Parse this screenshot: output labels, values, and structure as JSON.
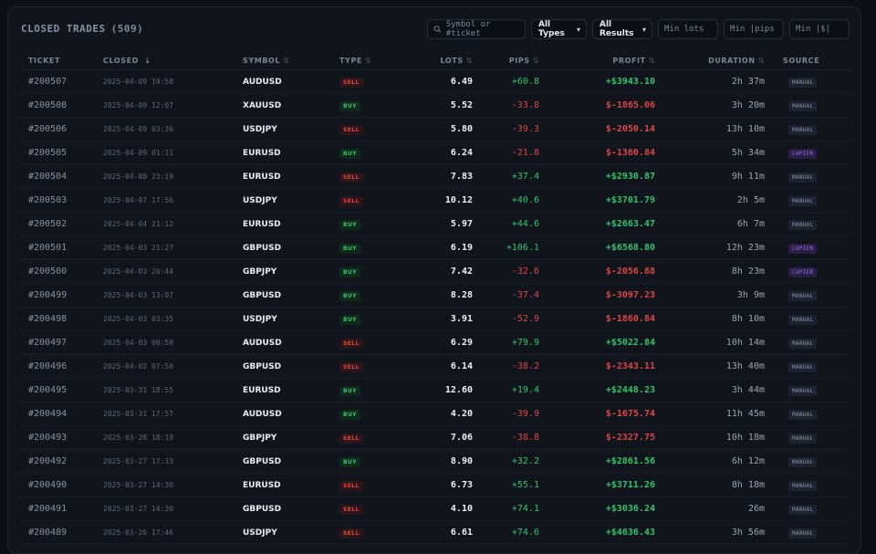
{
  "header": {
    "title": "CLOSED TRADES",
    "count": "(509)"
  },
  "filters": {
    "search_placeholder": "Symbol or #ticket",
    "types_value": "All Types",
    "results_value": "All Results",
    "min_lots_placeholder": "Min lots",
    "min_pips_placeholder": "Min |pips",
    "min_usd_placeholder": "Min |$|"
  },
  "columns": {
    "ticket": "TICKET",
    "closed": "CLOSED",
    "closed_sort": "↓",
    "symbol": "SYMBOL",
    "type": "TYPE",
    "lots": "LOTS",
    "pips": "PIPS",
    "profit": "PROFIT",
    "duration": "DURATION",
    "source": "SOURCE",
    "sort_glyph": "⇅"
  },
  "colors": {
    "positive": "#32c46a",
    "negative": "#e0463f",
    "copier": "#9a74e4"
  },
  "rows": [
    {
      "ticket": "#200507",
      "closed": "2025-04-09 19:58",
      "symbol": "AUDUSD",
      "type": "SELL",
      "lots": "6.49",
      "pips": "+60.8",
      "profit": "+$3943.10",
      "duration": "2h 37m",
      "source": "MANUAL"
    },
    {
      "ticket": "#200508",
      "closed": "2025-04-09 12:07",
      "symbol": "XAUUSD",
      "type": "BUY",
      "lots": "5.52",
      "pips": "-33.8",
      "profit": "$-1865.06",
      "duration": "3h 20m",
      "source": "MANUAL"
    },
    {
      "ticket": "#200506",
      "closed": "2025-04-09 03:36",
      "symbol": "USDJPY",
      "type": "SELL",
      "lots": "5.80",
      "pips": "-39.3",
      "profit": "$-2050.14",
      "duration": "13h 10m",
      "source": "MANUAL"
    },
    {
      "ticket": "#200505",
      "closed": "2025-04-09 01:11",
      "symbol": "EURUSD",
      "type": "BUY",
      "lots": "6.24",
      "pips": "-21.8",
      "profit": "$-1360.84",
      "duration": "5h 34m",
      "source": "COPIER"
    },
    {
      "ticket": "#200504",
      "closed": "2025-04-08 23:19",
      "symbol": "EURUSD",
      "type": "SELL",
      "lots": "7.83",
      "pips": "+37.4",
      "profit": "+$2930.87",
      "duration": "9h 11m",
      "source": "MANUAL"
    },
    {
      "ticket": "#200503",
      "closed": "2025-04-07 17:56",
      "symbol": "USDJPY",
      "type": "SELL",
      "lots": "10.12",
      "pips": "+40.6",
      "profit": "+$3701.79",
      "duration": "2h 5m",
      "source": "MANUAL"
    },
    {
      "ticket": "#200502",
      "closed": "2025-04-04 21:12",
      "symbol": "EURUSD",
      "type": "BUY",
      "lots": "5.97",
      "pips": "+44.6",
      "profit": "+$2663.47",
      "duration": "6h 7m",
      "source": "MANUAL"
    },
    {
      "ticket": "#200501",
      "closed": "2025-04-03 21:27",
      "symbol": "GBPUSD",
      "type": "BUY",
      "lots": "6.19",
      "pips": "+106.1",
      "profit": "+$6568.80",
      "duration": "12h 23m",
      "source": "COPIER"
    },
    {
      "ticket": "#200500",
      "closed": "2025-04-03 20:44",
      "symbol": "GBPJPY",
      "type": "BUY",
      "lots": "7.42",
      "pips": "-32.6",
      "profit": "$-2056.88",
      "duration": "8h 23m",
      "source": "COPIER"
    },
    {
      "ticket": "#200499",
      "closed": "2025-04-03 13:07",
      "symbol": "GBPUSD",
      "type": "BUY",
      "lots": "8.28",
      "pips": "-37.4",
      "profit": "$-3097.23",
      "duration": "3h 9m",
      "source": "MANUAL"
    },
    {
      "ticket": "#200498",
      "closed": "2025-04-03 03:35",
      "symbol": "USDJPY",
      "type": "BUY",
      "lots": "3.91",
      "pips": "-52.9",
      "profit": "$-1860.84",
      "duration": "8h 10m",
      "source": "MANUAL"
    },
    {
      "ticket": "#200497",
      "closed": "2025-04-03 00:58",
      "symbol": "AUDUSD",
      "type": "SELL",
      "lots": "6.29",
      "pips": "+79.9",
      "profit": "+$5022.84",
      "duration": "10h 14m",
      "source": "MANUAL"
    },
    {
      "ticket": "#200496",
      "closed": "2025-04-02 07:50",
      "symbol": "GBPUSD",
      "type": "SELL",
      "lots": "6.14",
      "pips": "-38.2",
      "profit": "$-2343.11",
      "duration": "13h 40m",
      "source": "MANUAL"
    },
    {
      "ticket": "#200495",
      "closed": "2025-03-31 18:55",
      "symbol": "EURUSD",
      "type": "BUY",
      "lots": "12.60",
      "pips": "+19.4",
      "profit": "+$2448.23",
      "duration": "3h 44m",
      "source": "MANUAL"
    },
    {
      "ticket": "#200494",
      "closed": "2025-03-31 17:57",
      "symbol": "AUDUSD",
      "type": "BUY",
      "lots": "4.20",
      "pips": "-39.9",
      "profit": "$-1675.74",
      "duration": "11h 45m",
      "source": "MANUAL"
    },
    {
      "ticket": "#200493",
      "closed": "2025-03-28 18:19",
      "symbol": "GBPJPY",
      "type": "SELL",
      "lots": "7.06",
      "pips": "-38.8",
      "profit": "$-2327.75",
      "duration": "10h 18m",
      "source": "MANUAL"
    },
    {
      "ticket": "#200492",
      "closed": "2025-03-27 17:33",
      "symbol": "GBPUSD",
      "type": "BUY",
      "lots": "8.90",
      "pips": "+32.2",
      "profit": "+$2861.56",
      "duration": "6h 12m",
      "source": "MANUAL"
    },
    {
      "ticket": "#200490",
      "closed": "2025-03-27 14:36",
      "symbol": "EURUSD",
      "type": "SELL",
      "lots": "6.73",
      "pips": "+55.1",
      "profit": "+$3711.26",
      "duration": "8h 18m",
      "source": "MANUAL"
    },
    {
      "ticket": "#200491",
      "closed": "2025-03-27 14:30",
      "symbol": "GBPUSD",
      "type": "SELL",
      "lots": "4.10",
      "pips": "+74.1",
      "profit": "+$3036.24",
      "duration": "26m",
      "source": "MANUAL"
    },
    {
      "ticket": "#200489",
      "closed": "2025-03-26 17:46",
      "symbol": "USDJPY",
      "type": "SELL",
      "lots": "6.61",
      "pips": "+74.6",
      "profit": "+$4636.43",
      "duration": "3h 56m",
      "source": "MANUAL"
    }
  ]
}
